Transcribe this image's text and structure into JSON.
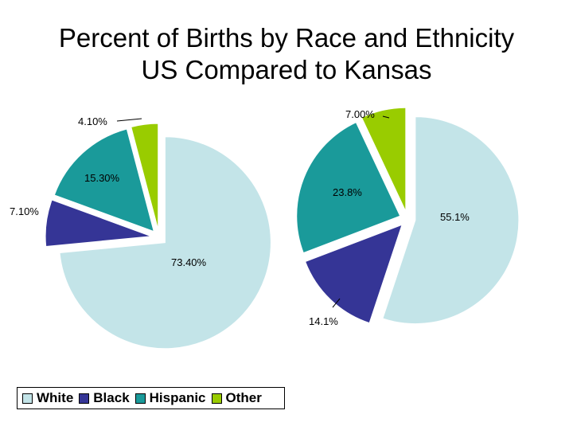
{
  "title_line1": "Percent of Births by Race and Ethnicity",
  "title_line2": "US Compared to Kansas",
  "colors": {
    "White": "#c3e4e8",
    "Black": "#353596",
    "Hispanic": "#1a9a9a",
    "Other": "#99cc00"
  },
  "chart_data": [
    {
      "type": "pie",
      "categories": [
        "White",
        "Black",
        "Hispanic",
        "Other"
      ],
      "values": [
        73.4,
        7.1,
        15.3,
        4.1
      ],
      "data_labels": [
        "73.40%",
        "7.10%",
        "15.30%",
        "4.10%"
      ],
      "exploded": true
    },
    {
      "type": "pie",
      "categories": [
        "White",
        "Black",
        "Hispanic",
        "Other"
      ],
      "values": [
        55.1,
        14.1,
        23.8,
        7.0
      ],
      "data_labels": [
        "55.1%",
        "14.1%",
        "23.8%",
        "7.00%"
      ],
      "exploded": true
    }
  ],
  "legend": [
    "White",
    "Black",
    "Hispanic",
    "Other"
  ]
}
